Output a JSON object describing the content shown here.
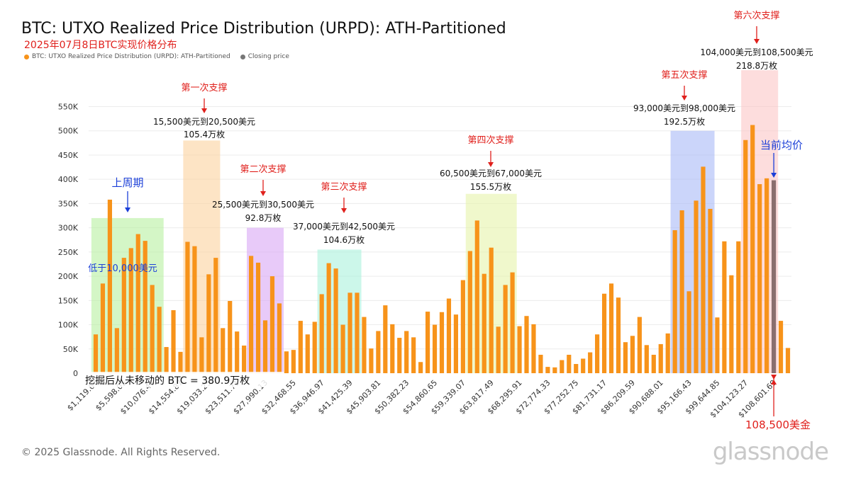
{
  "header": {
    "title": "BTC: UTXO Realized Price Distribution (URPD): ATH-Partitioned",
    "subtitle": "2025年07月8日BTC实现价格分布"
  },
  "legend": [
    {
      "label": "BTC: UTXO Realized Price Distribution (URPD): ATH-Partitioned",
      "color": "#f7931a"
    },
    {
      "label": "Closing price",
      "color": "#777777"
    }
  ],
  "footer": {
    "copyright": "© 2025 Glassnode. All Rights Reserved.",
    "brand": "glassnode"
  },
  "chart_data": {
    "type": "bar",
    "ylim": [
      0,
      580000
    ],
    "y_ticks": [
      0,
      50000,
      100000,
      150000,
      200000,
      250000,
      300000,
      350000,
      400000,
      450000,
      500000,
      550000
    ],
    "y_tick_labels": [
      "0",
      "50K",
      "100K",
      "150K",
      "200K",
      "250K",
      "300K",
      "350K",
      "400K",
      "450K",
      "500K",
      "550K"
    ],
    "x_tick_labels": [
      "$1,119.67",
      "$5,598.05",
      "$10,076.43",
      "$14,554.87",
      "$19,033.25",
      "$23,511.71",
      "$27,990.13",
      "$32,468.55",
      "$36,946.97",
      "$41,425.39",
      "$45,903.81",
      "$50,382.23",
      "$54,860.65",
      "$59,339.07",
      "$63,817.49",
      "$68,295.91",
      "$72,774.33",
      "$77,252.75",
      "$81,731.17",
      "$86,209.59",
      "$90,688.01",
      "$95,166.43",
      "$99,644.85",
      "$104,123.27",
      "$108,601.69"
    ],
    "values": [
      80000,
      185000,
      358000,
      93000,
      238000,
      258000,
      287000,
      273000,
      182000,
      137000,
      54000,
      130000,
      44000,
      271000,
      262000,
      74000,
      204000,
      238000,
      93000,
      149000,
      86000,
      57000,
      242000,
      228000,
      109000,
      200000,
      144000,
      45000,
      48000,
      108000,
      80000,
      106000,
      163000,
      227000,
      216000,
      100000,
      166000,
      166000,
      116000,
      51000,
      87000,
      140000,
      101000,
      73000,
      87000,
      74000,
      23000,
      127000,
      100000,
      126000,
      154000,
      121000,
      192000,
      252000,
      315000,
      205000,
      259000,
      96000,
      182000,
      208000,
      97000,
      118000,
      101000,
      38000,
      13000,
      12000,
      27000,
      38000,
      19000,
      30000,
      43000,
      80000,
      164000,
      185000,
      156000,
      64000,
      77000,
      116000,
      58000,
      38000,
      60000,
      82000,
      295000,
      336000,
      169000,
      356000,
      426000,
      339000,
      115000,
      272000,
      202000,
      272000,
      481000,
      512000,
      390000,
      402000,
      398000,
      108000,
      52000
    ],
    "highlight_index": 96,
    "highlight_color": "#8a6e6e",
    "bar_color": "#f7931a",
    "zones": [
      {
        "from": 0,
        "to": 9,
        "color": "#b8f0a0",
        "label_top": "上周期",
        "label_inner": "低于10,000美元",
        "label_color": "#1b3fd8"
      },
      {
        "from": 13,
        "to": 17,
        "color": "#fbd29e",
        "label_top": "第一次支撑",
        "range": "15,500美元到20,500美元",
        "amount": "105.4万枚"
      },
      {
        "from": 22,
        "to": 26,
        "color": "#d8a6f5",
        "label_top": "第二次支撑",
        "range": "25,500美元到30,500美元",
        "amount": "92.8万枚"
      },
      {
        "from": 32,
        "to": 37,
        "color": "#aaf2dc",
        "label_top": "第三次支撑",
        "range": "37,000美元到42,500美元",
        "amount": "104.6万枚"
      },
      {
        "from": 53,
        "to": 59,
        "color": "#e6f4aa",
        "label_top": "第四次支撑",
        "range": "60,500美元到67,000美元",
        "amount": "155.5万枚"
      },
      {
        "from": 82,
        "to": 87,
        "color": "#a9b9f6",
        "label_top": "第五次支撑",
        "range": "93,000美元到98,000美元",
        "amount": "192.5万枚"
      },
      {
        "from": 92,
        "to": 96,
        "color": "#fbc6c6",
        "label_top": "第六次支撑",
        "range": "104,000美元到108,500美元",
        "amount": "218.8万枚"
      }
    ],
    "annotations": {
      "current_avg": "当前均价",
      "price_label": "108,500美金",
      "unmoved": "挖掘后从未移动的 BTC = 380.9万枚"
    }
  }
}
